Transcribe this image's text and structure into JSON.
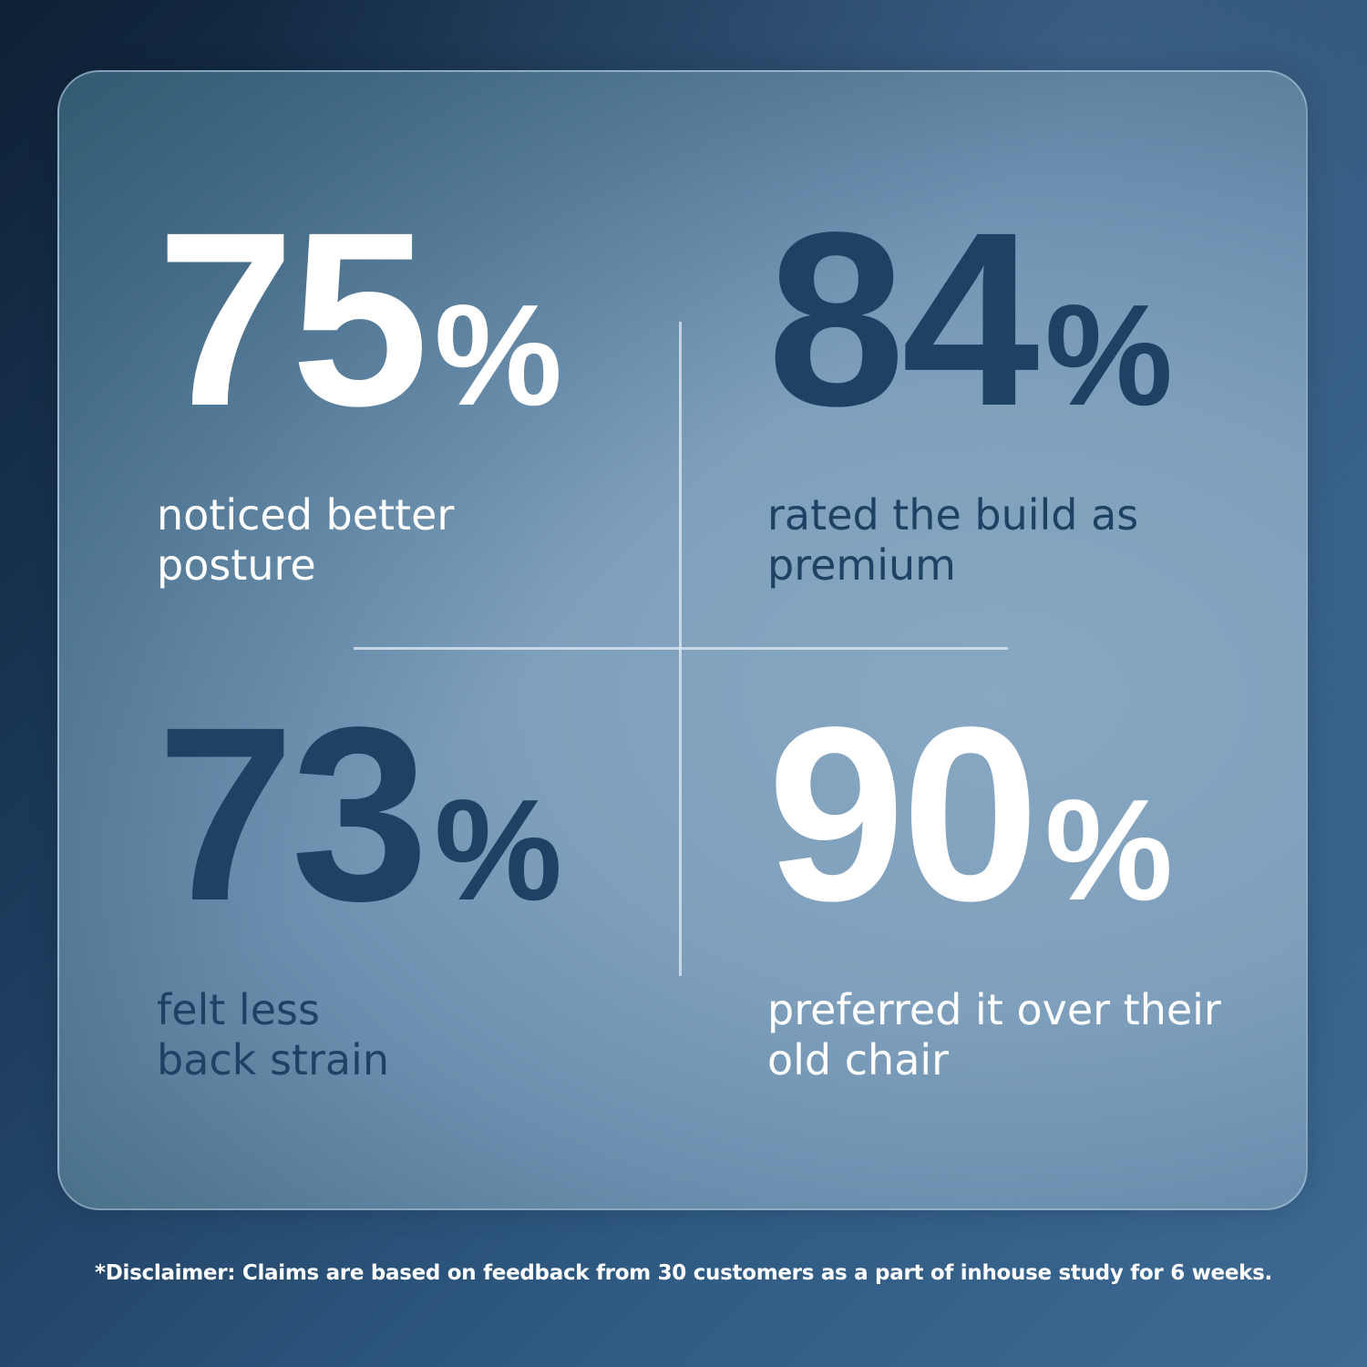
{
  "stats": [
    {
      "value": "75",
      "unit": "%",
      "label_line1": "noticed better",
      "label_line2": "posture",
      "color": "#ffffff"
    },
    {
      "value": "84",
      "unit": "%",
      "label_line1": "rated the build as",
      "label_line2": "premium",
      "color": "#1e4264"
    },
    {
      "value": "73",
      "unit": "%",
      "label_line1": "felt less",
      "label_line2": "back strain",
      "color": "#1e4264"
    },
    {
      "value": "90",
      "unit": "%",
      "label_line1": "preferred it over their",
      "label_line2": "old chair",
      "color": "#ffffff"
    }
  ],
  "disclaimer": "*Disclaimer: Claims are based on feedback from 30 customers as a part of inhouse study for 6 weeks."
}
